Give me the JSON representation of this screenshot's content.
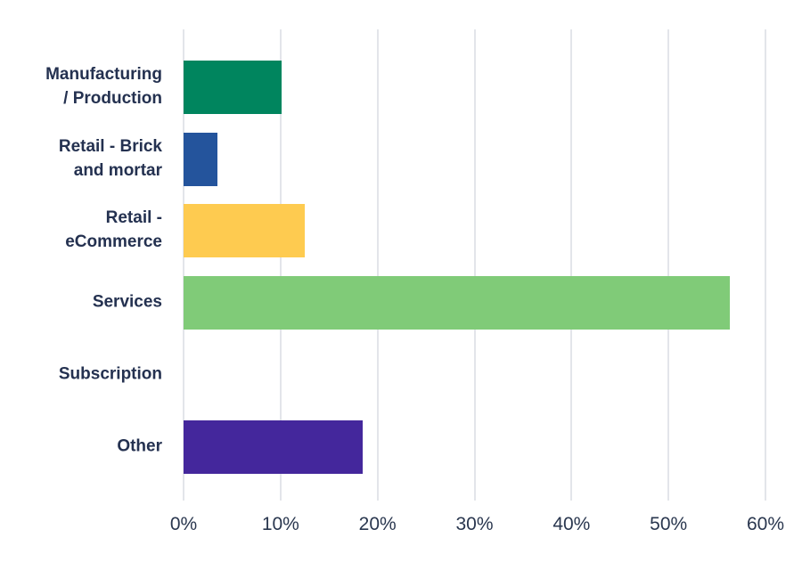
{
  "chart_data": {
    "type": "bar",
    "orientation": "horizontal",
    "title": "",
    "xlabel": "",
    "ylabel": "",
    "xlim": [
      0,
      60
    ],
    "unit": "%",
    "grid": "vertical",
    "legend": "none",
    "categories": [
      "Manufacturing / Production",
      "Retail - Brick and mortar",
      "Retail - eCommerce",
      "Services",
      "Subscription",
      "Other"
    ],
    "category_label_lines": [
      [
        "Manufacturing",
        "/ Production"
      ],
      [
        "Retail - Brick",
        "and mortar"
      ],
      [
        "Retail -",
        "eCommerce"
      ],
      [
        "Services"
      ],
      [
        "Subscription"
      ],
      [
        "Other"
      ]
    ],
    "values": [
      10.1,
      3.5,
      12.5,
      56.3,
      0,
      18.5
    ],
    "bar_colors": [
      "#00855E",
      "#24549C",
      "#FECB50",
      "#80CB78",
      null,
      "#44279C"
    ],
    "x_tick_labels": [
      "0%",
      "10%",
      "20%",
      "30%",
      "40%",
      "50%",
      "60%"
    ],
    "x_tick_values": [
      0,
      10,
      20,
      30,
      40,
      50,
      60
    ]
  },
  "colors": {
    "background": "#FFFFFF",
    "gridline": "#E3E5EA",
    "label_text": "#243150",
    "tick_text": "#2A374F"
  }
}
